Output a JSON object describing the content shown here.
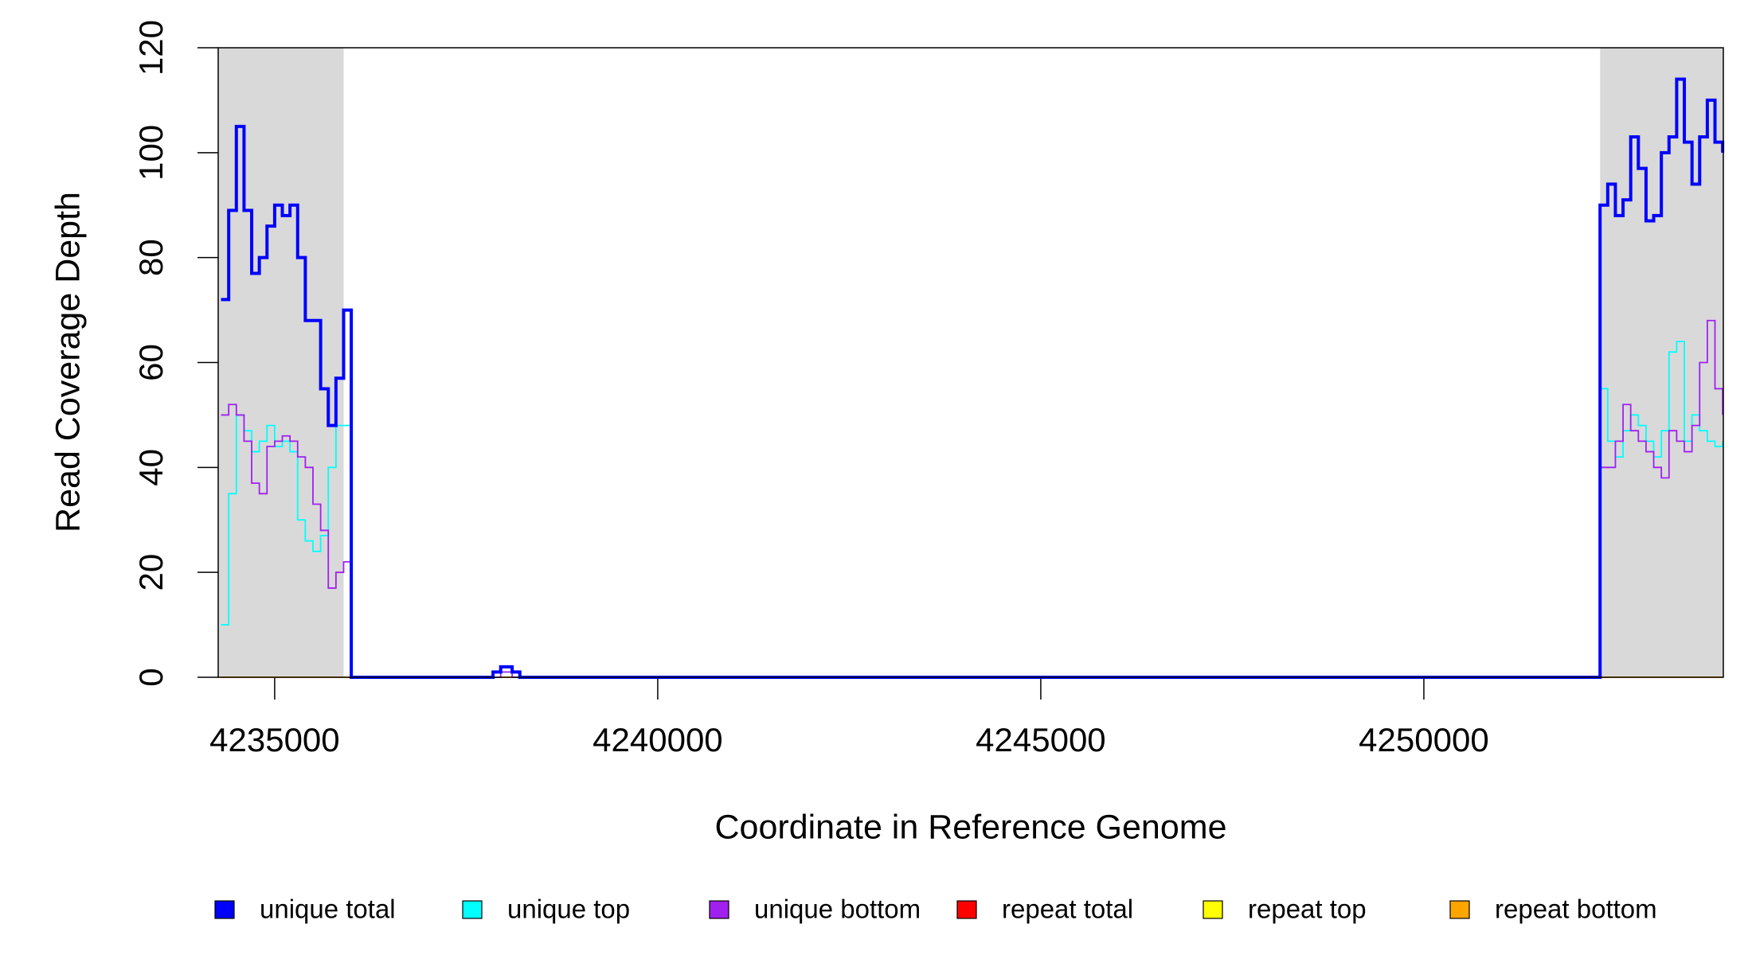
{
  "chart_data": {
    "type": "line",
    "step": true,
    "xlabel": "Coordinate in Reference Genome",
    "ylabel": "Read Coverage Depth",
    "x": [
      4234300,
      4234400,
      4234500,
      4234600,
      4234700,
      4234800,
      4234900,
      4235000,
      4235100,
      4235200,
      4235300,
      4235400,
      4235500,
      4235600,
      4235700,
      4235800,
      4235900,
      4236000,
      4237850,
      4237950,
      4238100,
      4238200,
      4252300,
      4252400,
      4252500,
      4252600,
      4252700,
      4252800,
      4252900,
      4253000,
      4253100,
      4253200,
      4253300,
      4253400,
      4253500,
      4253600,
      4253700,
      4253800,
      4253900
    ],
    "series": [
      {
        "name": "repeat total",
        "color": "#ff0000",
        "values": [
          0,
          0,
          0,
          0,
          0,
          0,
          0,
          0,
          0,
          0,
          0,
          0,
          0,
          0,
          0,
          0,
          0,
          0,
          0,
          0,
          0,
          0,
          0,
          0,
          0,
          0,
          0,
          0,
          0,
          0,
          0,
          0,
          0,
          0,
          0,
          0,
          0,
          0,
          0
        ]
      },
      {
        "name": "repeat top",
        "color": "#ffff00",
        "values": [
          0,
          0,
          0,
          0,
          0,
          0,
          0,
          0,
          0,
          0,
          0,
          0,
          0,
          0,
          0,
          0,
          0,
          0,
          0,
          0,
          0,
          0,
          0,
          0,
          0,
          0,
          0,
          0,
          0,
          0,
          0,
          0,
          0,
          0,
          0,
          0,
          0,
          0,
          0
        ]
      },
      {
        "name": "repeat bottom",
        "color": "#ffa500",
        "values": [
          0,
          0,
          0,
          0,
          0,
          0,
          0,
          0,
          0,
          0,
          0,
          0,
          0,
          0,
          0,
          0,
          0,
          0,
          0,
          0,
          0,
          0,
          0,
          0,
          0,
          0,
          0,
          0,
          0,
          0,
          0,
          0,
          0,
          0,
          0,
          0,
          0,
          0,
          0
        ]
      },
      {
        "name": "unique top",
        "color": "#00ffff",
        "values": [
          10,
          35,
          50,
          47,
          43,
          45,
          48,
          44,
          45,
          43,
          30,
          26,
          24,
          27,
          40,
          48,
          48,
          0,
          1,
          1,
          1,
          0,
          55,
          45,
          42,
          47,
          50,
          48,
          45,
          42,
          47,
          62,
          64,
          45,
          50,
          47,
          45,
          44,
          45
        ]
      },
      {
        "name": "unique bottom",
        "color": "#a020f0",
        "values": [
          50,
          52,
          50,
          45,
          37,
          35,
          44,
          45,
          46,
          45,
          42,
          40,
          33,
          28,
          17,
          20,
          22,
          0,
          0,
          1,
          0,
          0,
          40,
          40,
          45,
          52,
          47,
          45,
          43,
          40,
          38,
          47,
          45,
          43,
          48,
          60,
          68,
          55,
          50
        ]
      },
      {
        "name": "unique total",
        "color": "#0000ff",
        "values": [
          72,
          89,
          105,
          89,
          77,
          80,
          86,
          90,
          88,
          90,
          80,
          68,
          68,
          55,
          48,
          57,
          70,
          0,
          1,
          2,
          1,
          0,
          90,
          94,
          88,
          91,
          103,
          97,
          87,
          88,
          100,
          103,
          114,
          102,
          94,
          103,
          110,
          102,
          100
        ]
      }
    ],
    "legend_order": [
      5,
      3,
      4,
      0,
      1,
      2
    ],
    "shaded_ranges": [
      [
        4234263,
        4235900
      ],
      [
        4252301,
        4253909
      ]
    ],
    "shade_color": "#d9d9d9",
    "xlim": [
      4234263,
      4253909
    ],
    "xticks": [
      4235000,
      4240000,
      4245000,
      4250000
    ],
    "ylim": [
      0,
      120
    ],
    "yticks": [
      0,
      20,
      40,
      60,
      80,
      100,
      120
    ]
  }
}
